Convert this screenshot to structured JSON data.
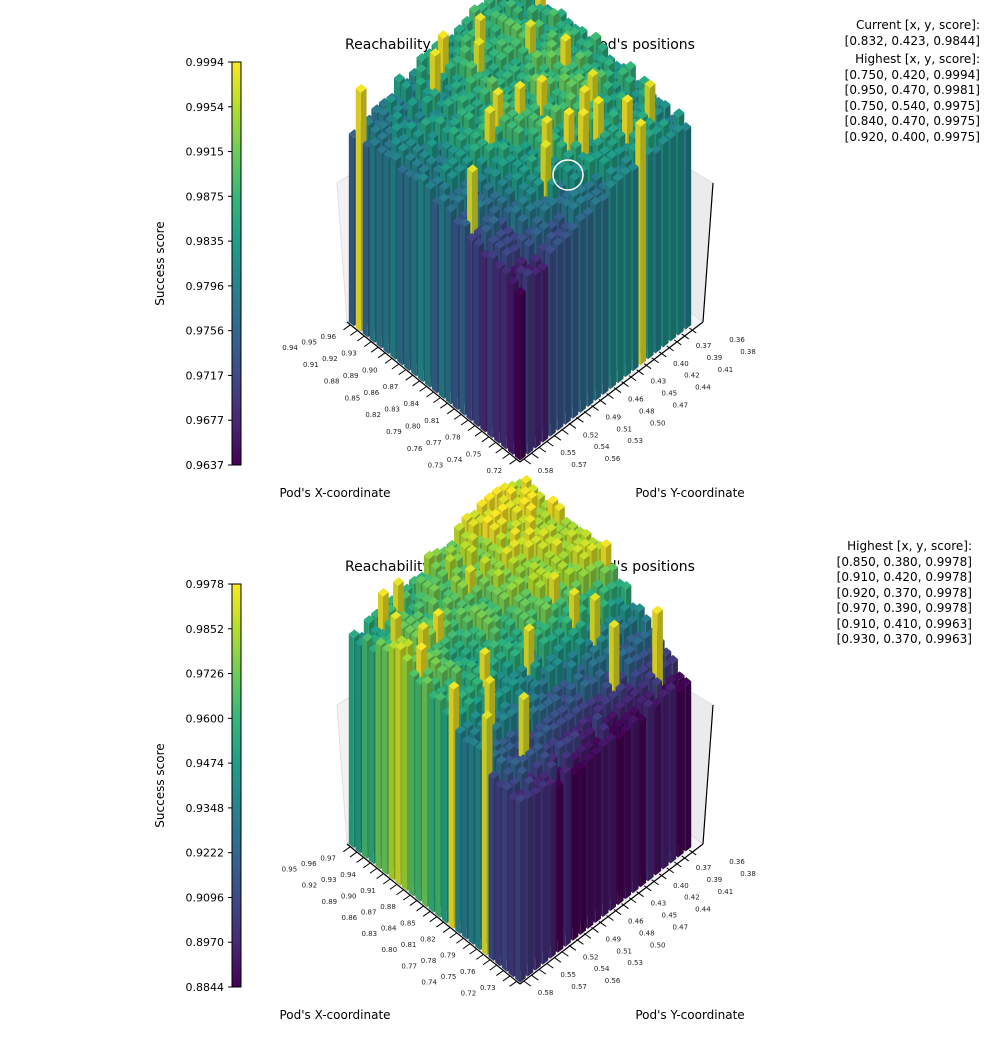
{
  "chart_data": [
    {
      "type": "bar3d",
      "title": "Reachability score as a function of pod's positions",
      "xlabel": "Pod's X-coordinate",
      "ylabel": "Pod's Y-coordinate",
      "colorbar_label": "Success score",
      "colormap": "viridis",
      "x_ticks": [
        "0.96",
        "0.95",
        "0.94",
        "0.93",
        "0.92",
        "0.91",
        "0.90",
        "0.89",
        "0.88",
        "0.87",
        "0.86",
        "0.85",
        "0.84",
        "0.83",
        "0.82",
        "0.81",
        "0.80",
        "0.79",
        "0.78",
        "0.77",
        "0.76",
        "0.75",
        "0.74",
        "0.73",
        "0.72"
      ],
      "y_ticks": [
        "0.58",
        "0.57",
        "0.56",
        "0.55",
        "0.54",
        "0.53",
        "0.52",
        "0.51",
        "0.50",
        "0.49",
        "0.48",
        "0.47",
        "0.46",
        "0.45",
        "0.44",
        "0.43",
        "0.42",
        "0.41",
        "0.40",
        "0.39",
        "0.38",
        "0.37",
        "0.36"
      ],
      "colorbar_ticks": [
        "0.9994",
        "0.9954",
        "0.9915",
        "0.9875",
        "0.9835",
        "0.9796",
        "0.9756",
        "0.9717",
        "0.9677",
        "0.9637"
      ],
      "zlim": [
        0.9637,
        0.9994
      ],
      "z_coarse_note": "approximate regional scores, rows X 0.96→0.72, cols Y 0.58→0.36",
      "z_coarse": [
        [
          0.978,
          0.981,
          0.984,
          0.986,
          0.985
        ],
        [
          0.979,
          0.983,
          0.987,
          0.988,
          0.986
        ],
        [
          0.977,
          0.984,
          0.988,
          0.989,
          0.986
        ],
        [
          0.97,
          0.979,
          0.985,
          0.986,
          0.984
        ],
        [
          0.966,
          0.972,
          0.979,
          0.982,
          0.98
        ]
      ],
      "current_marker": {
        "x": 0.832,
        "y": 0.423,
        "score": 0.9844
      },
      "info_lines": [
        "Current [x, y, score]:",
        "[0.832, 0.423, 0.9844]",
        "Highest [x, y, score]:",
        "[0.750, 0.420, 0.9994]",
        "[0.950, 0.470, 0.9981]",
        "[0.750, 0.540, 0.9975]",
        "[0.840, 0.470, 0.9975]",
        "[0.920, 0.400, 0.9975]"
      ]
    },
    {
      "type": "bar3d",
      "title": "Reachability score as a function of pod's positions",
      "xlabel": "Pod's X-coordinate",
      "ylabel": "Pod's Y-coordinate",
      "colorbar_label": "Success score",
      "colormap": "viridis",
      "x_ticks": [
        "0.97",
        "0.96",
        "0.95",
        "0.94",
        "0.93",
        "0.92",
        "0.91",
        "0.90",
        "0.89",
        "0.88",
        "0.87",
        "0.86",
        "0.85",
        "0.84",
        "0.83",
        "0.82",
        "0.81",
        "0.80",
        "0.79",
        "0.78",
        "0.77",
        "0.76",
        "0.75",
        "0.74",
        "0.73",
        "0.72"
      ],
      "y_ticks": [
        "0.58",
        "0.57",
        "0.56",
        "0.55",
        "0.54",
        "0.53",
        "0.52",
        "0.51",
        "0.50",
        "0.49",
        "0.48",
        "0.47",
        "0.46",
        "0.45",
        "0.44",
        "0.43",
        "0.42",
        "0.41",
        "0.40",
        "0.39",
        "0.38",
        "0.37",
        "0.36"
      ],
      "colorbar_ticks": [
        "0.9978",
        "0.9852",
        "0.9726",
        "0.9600",
        "0.9474",
        "0.9348",
        "0.9222",
        "0.9096",
        "0.8970",
        "0.8844"
      ],
      "zlim": [
        0.8844,
        0.9978
      ],
      "z_coarse_note": "approximate regional scores, rows X 0.97→0.72, cols Y 0.58→0.36",
      "z_coarse": [
        [
          0.945,
          0.958,
          0.975,
          0.99,
          0.992
        ],
        [
          0.985,
          0.962,
          0.972,
          0.988,
          0.99
        ],
        [
          0.962,
          0.955,
          0.962,
          0.978,
          0.982
        ],
        [
          0.93,
          0.922,
          0.918,
          0.925,
          0.928
        ],
        [
          0.9,
          0.89,
          0.888,
          0.888,
          0.89
        ]
      ],
      "info_lines": [
        "Highest [x, y, score]:",
        "[0.850, 0.380, 0.9978]",
        "[0.910, 0.420, 0.9978]",
        "[0.920, 0.370, 0.9978]",
        "[0.970, 0.390, 0.9978]",
        "[0.910, 0.410, 0.9963]",
        "[0.930, 0.370, 0.9963]"
      ]
    }
  ]
}
